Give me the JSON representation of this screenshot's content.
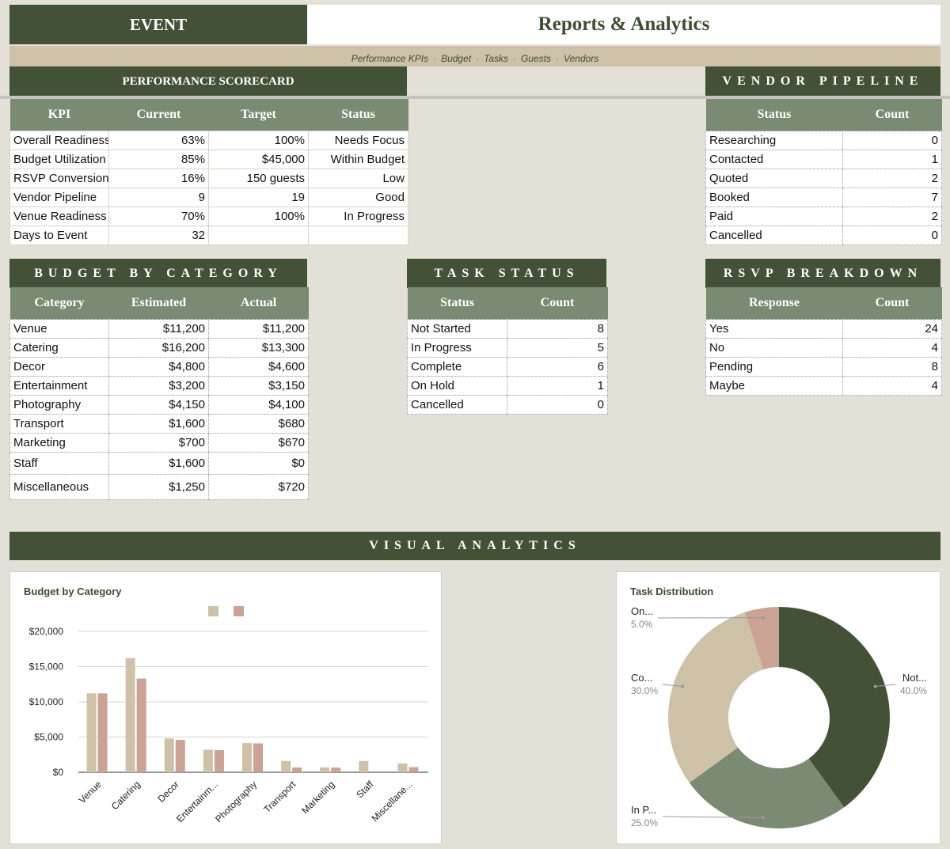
{
  "header": {
    "event_label": "EVENT",
    "title": "Reports & Analytics",
    "nav": [
      "Performance KPIs",
      "Budget",
      "Tasks",
      "Guests",
      "Vendors"
    ],
    "nav_separator": "·"
  },
  "scorecard": {
    "title": "PERFORMANCE SCORECARD",
    "columns": [
      "KPI",
      "Current",
      "Target",
      "Status"
    ],
    "rows": [
      [
        "Overall Readiness",
        "63%",
        "100%",
        "Needs Focus"
      ],
      [
        "Budget Utilization",
        "85%",
        "$45,000",
        "Within Budget"
      ],
      [
        "RSVP Conversion",
        "16%",
        "150 guests",
        "Low"
      ],
      [
        "Vendor Pipeline",
        "9",
        "19",
        "Good"
      ],
      [
        "Venue Readiness",
        "70%",
        "100%",
        "In Progress"
      ],
      [
        "Days to Event",
        "32",
        "",
        ""
      ]
    ]
  },
  "vendor_pipeline": {
    "title": "VENDOR PIPELINE",
    "columns": [
      "Status",
      "Count"
    ],
    "rows": [
      [
        "Researching",
        "0"
      ],
      [
        "Contacted",
        "1"
      ],
      [
        "Quoted",
        "2"
      ],
      [
        "Booked",
        "7"
      ],
      [
        "Paid",
        "2"
      ],
      [
        "Cancelled",
        "0"
      ]
    ]
  },
  "budget": {
    "title": "BUDGET BY CATEGORY",
    "columns": [
      "Category",
      "Estimated",
      "Actual"
    ],
    "rows": [
      [
        "Venue",
        "$11,200",
        "$11,200"
      ],
      [
        "Catering",
        "$16,200",
        "$13,300"
      ],
      [
        "Decor",
        "$4,800",
        "$4,600"
      ],
      [
        "Entertainment",
        "$3,200",
        "$3,150"
      ],
      [
        "Photography",
        "$4,150",
        "$4,100"
      ],
      [
        "Transport",
        "$1,600",
        "$680"
      ],
      [
        "Marketing",
        "$700",
        "$670"
      ],
      [
        "Staff",
        "$1,600",
        "$0"
      ],
      [
        "Miscellaneous",
        "$1,250",
        "$720"
      ]
    ]
  },
  "tasks": {
    "title": "TASK STATUS",
    "columns": [
      "Status",
      "Count"
    ],
    "rows": [
      [
        "Not Started",
        "8"
      ],
      [
        "In Progress",
        "5"
      ],
      [
        "Complete",
        "6"
      ],
      [
        "On Hold",
        "1"
      ],
      [
        "Cancelled",
        "0"
      ]
    ]
  },
  "rsvp": {
    "title": "RSVP BREAKDOWN",
    "columns": [
      "Response",
      "Count"
    ],
    "rows": [
      [
        "Yes",
        "24"
      ],
      [
        "No",
        "4"
      ],
      [
        "Pending",
        "8"
      ],
      [
        "Maybe",
        "4"
      ]
    ]
  },
  "visual_analytics": {
    "title": "VISUAL ANALYTICS"
  },
  "colors": {
    "dark_green": "#435237",
    "sage": "#7a8a73",
    "tan": "#cdc2a8",
    "rose": "#caa394"
  },
  "chart_data": [
    {
      "type": "bar",
      "title": "Budget by Category",
      "categories": [
        "Venue",
        "Catering",
        "Decor",
        "Entertainm...",
        "Photography",
        "Transport",
        "Marketing",
        "Staff",
        "Miscellane..."
      ],
      "series": [
        {
          "values": [
            11200,
            16200,
            4800,
            3200,
            4150,
            1600,
            700,
            1600,
            1250
          ],
          "color": "#cdc2a8"
        },
        {
          "values": [
            11200,
            13300,
            4600,
            3150,
            4100,
            680,
            670,
            0,
            720
          ],
          "color": "#caa394"
        }
      ],
      "yticks": [
        "$0",
        "$5,000",
        "$10,000",
        "$15,000",
        "$20,000"
      ],
      "ylim": [
        0,
        20000
      ],
      "grid": true,
      "legend": "top"
    },
    {
      "type": "pie",
      "title": "Task Distribution",
      "slices": [
        {
          "label": "Not...",
          "pct": "40.0%",
          "value": 40,
          "color": "#435237"
        },
        {
          "label": "In P...",
          "pct": "25.0%",
          "value": 25,
          "color": "#7a8a73"
        },
        {
          "label": "Co...",
          "pct": "30.0%",
          "value": 30,
          "color": "#cdc2a8"
        },
        {
          "label": "On...",
          "pct": "5.0%",
          "value": 5,
          "color": "#caa394"
        }
      ],
      "donut": true
    }
  ]
}
